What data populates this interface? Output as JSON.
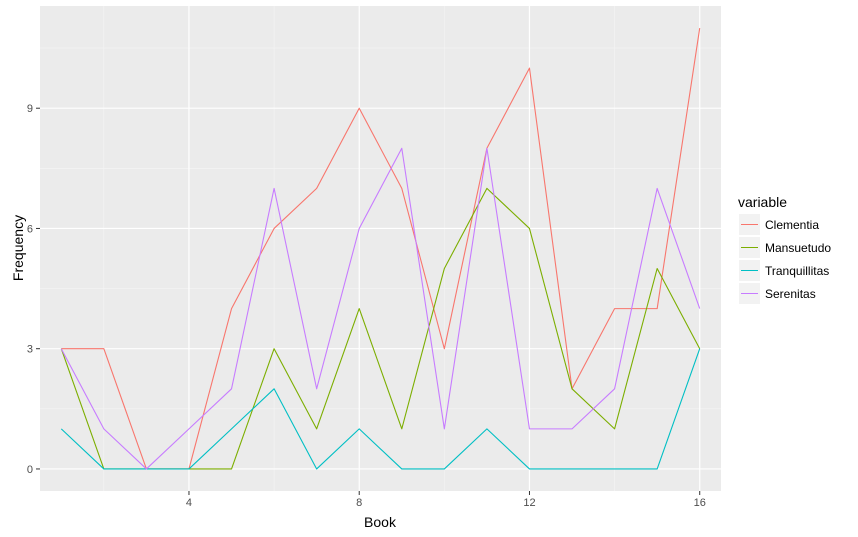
{
  "chart_data": {
    "type": "line",
    "xlabel": "Book",
    "ylabel": "Frequency",
    "xlim": [
      0.5,
      16.5
    ],
    "ylim": [
      -0.55,
      11.55
    ],
    "xticks": [
      4,
      8,
      12,
      16
    ],
    "yticks": [
      0,
      3,
      6,
      9
    ],
    "grid": true,
    "legend_position": "right",
    "legend_title": "variable",
    "x": [
      1,
      2,
      3,
      4,
      5,
      6,
      7,
      8,
      9,
      10,
      11,
      12,
      13,
      14,
      15,
      16
    ],
    "series": [
      {
        "name": "Clementia",
        "color": "#F8766D",
        "values": [
          3,
          3,
          0,
          0,
          4,
          6,
          7,
          9,
          7,
          3,
          8,
          10,
          2,
          4,
          4,
          11
        ]
      },
      {
        "name": "Mansuetudo",
        "color": "#7CAE00",
        "values": [
          3,
          0,
          0,
          0,
          0,
          3,
          1,
          4,
          1,
          5,
          7,
          6,
          2,
          1,
          5,
          3
        ]
      },
      {
        "name": "Tranquillitas",
        "color": "#00BFC4",
        "values": [
          1,
          0,
          0,
          0,
          1,
          2,
          0,
          1,
          0,
          0,
          1,
          0,
          0,
          0,
          0,
          3
        ]
      },
      {
        "name": "Serenitas",
        "color": "#C77CFF",
        "values": [
          3,
          1,
          0,
          1,
          2,
          7,
          2,
          6,
          8,
          1,
          8,
          1,
          1,
          2,
          7,
          4
        ]
      }
    ]
  }
}
